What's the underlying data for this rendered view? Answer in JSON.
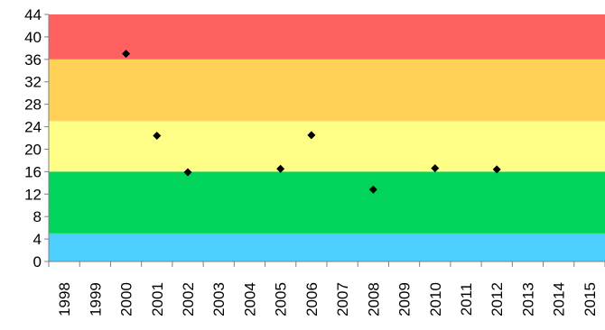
{
  "chart_data": {
    "type": "scatter",
    "title": "",
    "xlabel": "",
    "ylabel": "",
    "ylim": [
      0,
      44
    ],
    "y_ticks": [
      "0",
      "4",
      "8",
      "12",
      "16",
      "20",
      "24",
      "28",
      "32",
      "36",
      "40",
      "44"
    ],
    "categories": [
      "1998",
      "1999",
      "2000",
      "2001",
      "2002",
      "2003",
      "2004",
      "2005",
      "2006",
      "2007",
      "2008",
      "2009",
      "2010",
      "2011",
      "2012",
      "2013",
      "2014",
      "2015"
    ],
    "bands": [
      {
        "from": 0,
        "to": 5,
        "color": "#4dcfff"
      },
      {
        "from": 5,
        "to": 16,
        "color": "#00d45a"
      },
      {
        "from": 16,
        "to": 25,
        "color": "#ffff88"
      },
      {
        "from": 25,
        "to": 36,
        "color": "#ffd257"
      },
      {
        "from": 36,
        "to": 44,
        "color": "#ff6161"
      }
    ],
    "series": [
      {
        "marker": "diamond",
        "color": "#000000",
        "points": [
          {
            "x": 2000.5,
            "y": 37.0
          },
          {
            "x": 2001.5,
            "y": 22.4
          },
          {
            "x": 2002.5,
            "y": 15.9
          },
          {
            "x": 2005.5,
            "y": 16.5
          },
          {
            "x": 2006.5,
            "y": 22.5
          },
          {
            "x": 2008.5,
            "y": 12.8
          },
          {
            "x": 2010.5,
            "y": 16.6
          },
          {
            "x": 2012.5,
            "y": 16.4
          }
        ]
      }
    ],
    "grid": false,
    "legend": "none"
  }
}
